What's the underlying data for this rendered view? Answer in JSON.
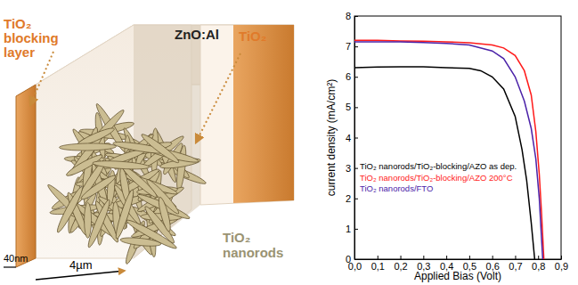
{
  "chart_data": {
    "type": "line",
    "x_label": "Applied Bias (Volt)",
    "y_label": "current density (mA/cm²)",
    "xlim": [
      0,
      0.9
    ],
    "xticks": [
      {
        "value": 0,
        "label": "0,0"
      },
      {
        "value": 0.1,
        "label": "0,1"
      },
      {
        "value": 0.2,
        "label": "0,2"
      },
      {
        "value": 0.3,
        "label": "0,3"
      },
      {
        "value": 0.4,
        "label": "0,4"
      },
      {
        "value": 0.5,
        "label": "0,5"
      },
      {
        "value": 0.6,
        "label": "0,6"
      },
      {
        "value": 0.7,
        "label": "0,7"
      },
      {
        "value": 0.8,
        "label": "0,8"
      },
      {
        "value": 0.9,
        "label": "0,9"
      }
    ],
    "ylim": [
      0,
      8
    ],
    "yticks": [
      0,
      1,
      2,
      3,
      4,
      5,
      6,
      7,
      8
    ],
    "legend": "left",
    "series": [
      {
        "name": "TiO₂ nanorods/TiO₂-blocking/AZO as dep.",
        "color": "#000000",
        "x": [
          0,
          0.1,
          0.2,
          0.3,
          0.4,
          0.5,
          0.55,
          0.6,
          0.65,
          0.7,
          0.73,
          0.75,
          0.77,
          0.785
        ],
        "values": [
          6.3,
          6.32,
          6.33,
          6.33,
          6.3,
          6.28,
          6.2,
          6.0,
          5.6,
          4.7,
          3.6,
          2.6,
          1.2,
          0
        ]
      },
      {
        "name": "TiO₂ nanorods/TiO₂-blocking/AZO 200°C",
        "color": "#ff1a1a",
        "x": [
          0,
          0.1,
          0.2,
          0.3,
          0.4,
          0.5,
          0.6,
          0.65,
          0.7,
          0.74,
          0.77,
          0.79,
          0.805,
          0.815,
          0.825
        ],
        "values": [
          7.2,
          7.2,
          7.18,
          7.17,
          7.15,
          7.12,
          7.05,
          6.95,
          6.7,
          6.2,
          5.4,
          4.2,
          2.8,
          1.5,
          0
        ]
      },
      {
        "name": "TiO₂ nanorods/FTO",
        "color": "#4b22a8",
        "x": [
          0,
          0.1,
          0.2,
          0.3,
          0.4,
          0.5,
          0.6,
          0.65,
          0.7,
          0.74,
          0.77,
          0.79,
          0.805,
          0.82
        ],
        "values": [
          7.15,
          7.15,
          7.15,
          7.13,
          7.1,
          7.05,
          6.85,
          6.6,
          6.0,
          5.2,
          4.3,
          3.3,
          2.0,
          0
        ]
      }
    ]
  },
  "diagram": {
    "blocking_layer": [
      "TiO₂",
      "blocking",
      "layer"
    ],
    "top_layer": "ZnO:Al",
    "top_layer_coating": "TiO₂",
    "nanorods": [
      "TiO₂",
      "nanorods"
    ],
    "blocking_thickness": "40nm",
    "film_thickness": "4µm"
  }
}
